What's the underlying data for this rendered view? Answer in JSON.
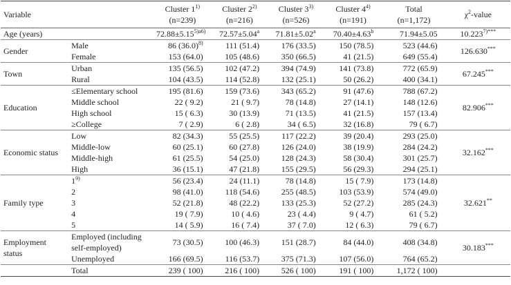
{
  "header": [
    "Variable",
    {
      "text": "Cluster 1",
      "sup": "1)",
      "sub": "(n=239)"
    },
    {
      "text": "Cluster 2",
      "sup": "2)",
      "sub": "(n=216)"
    },
    {
      "text": "Cluster 3",
      "sup": "3)",
      "sub": "(n=526)"
    },
    {
      "text": "Cluster 4",
      "sup": "4)",
      "sub": "(n=191)"
    },
    {
      "text": "Total",
      "sub": "(n=1,172)"
    },
    {
      "text": "χ",
      "sup": "2",
      "after": "-value"
    }
  ],
  "age": {
    "label": "Age (years)",
    "values": [
      {
        "text": "72.88±5.15",
        "sup": "5)a6)"
      },
      {
        "text": "72.57±5.04",
        "sup": "a"
      },
      {
        "text": "71.81±5.02",
        "sup": "a"
      },
      {
        "text": "70.40±4.63",
        "sup": "b"
      },
      "71.94±5.05"
    ],
    "chi": {
      "text": "10.223",
      "sup": "7)***"
    }
  },
  "groups": [
    {
      "label": "Gender",
      "chi": {
        "text": "126.630",
        "sup": "***"
      },
      "items": [
        {
          "label": "Male",
          "values": [
            {
              "text": "86 (36.0)",
              "sup": "8)"
            },
            "111 (51.4)",
            "176 (33.5)",
            "150 (78.5)",
            "523 (44.6)"
          ]
        },
        {
          "label": "Female",
          "values": [
            "153 (64.0)",
            "105 (48.6)",
            "350 (66.5)",
            "41 (21.5)",
            "649 (55.4)"
          ]
        }
      ]
    },
    {
      "label": "Town",
      "chi": {
        "text": "67.245",
        "sup": "***"
      },
      "items": [
        {
          "label": "Urban",
          "values": [
            "135 (56.5)",
            "102 (47.2)",
            "394 (74.9)",
            "141 (73.8)",
            "772 (65.9)"
          ]
        },
        {
          "label": "Rural",
          "values": [
            "104 (43.5)",
            "114 (52.8)",
            "132 (25.1)",
            "50 (26.2)",
            "400 (34.1)"
          ]
        }
      ]
    },
    {
      "label": "Education",
      "chi": {
        "text": "82.906",
        "sup": "***"
      },
      "items": [
        {
          "label": "≤Elementary school",
          "values": [
            "195 (81.6)",
            "159 (73.6)",
            "343 (65.2)",
            "91 (47.6)",
            "788 (67.2)"
          ]
        },
        {
          "label": "Middle school",
          "values": [
            "22 ( 9.2)",
            "21 ( 9.7)",
            "78 (14.8)",
            "27 (14.1)",
            "148 (12.6)"
          ]
        },
        {
          "label": "High school",
          "values": [
            "15 ( 6.3)",
            "30 (13.9)",
            "71 (13.5)",
            "41 (21.5)",
            "157 (13.4)"
          ]
        },
        {
          "label": "≥College",
          "values": [
            "7 ( 2.9)",
            "6 ( 2.8)",
            "34 ( 6.5)",
            "32 (16.8)",
            "79 ( 6.7)"
          ]
        }
      ]
    },
    {
      "label": "Economic status",
      "chi": {
        "text": "32.162",
        "sup": "***"
      },
      "items": [
        {
          "label": "Low",
          "values": [
            "82 (34.3)",
            "55 (25.5)",
            "117 (22.2)",
            "39 (20.4)",
            "293 (25.0)"
          ]
        },
        {
          "label": "Middle-low",
          "values": [
            "60 (25.1)",
            "60 (27.8)",
            "126 (24.0)",
            "38 (19.9)",
            "284 (24.2)"
          ]
        },
        {
          "label": "Middle-high",
          "values": [
            "61 (25.5)",
            "54 (25.0)",
            "128 (24.3)",
            "58 (30.4)",
            "301 (25.7)"
          ]
        },
        {
          "label": "High",
          "values": [
            "36 (15.1)",
            "47 (21.8)",
            "155 (29.5)",
            "56 (29.3)",
            "294 (25.1)"
          ]
        }
      ]
    },
    {
      "label": "Family type",
      "chi": {
        "text": "32.621",
        "sup": "**"
      },
      "items": [
        {
          "label": {
            "text": "1",
            "sup": "9)"
          },
          "values": [
            "56 (23.4)",
            "24 (11.1)",
            "78 (14.8)",
            "15 ( 7.9)",
            "173 (14.8)"
          ]
        },
        {
          "label": "2",
          "values": [
            "98 (41.0)",
            "118 (54.6)",
            "255 (48.5)",
            "103 (53.9)",
            "574 (49.0)"
          ]
        },
        {
          "label": "3",
          "values": [
            "52 (21.8)",
            "48 (22.2)",
            "133 (25.3)",
            "52 (27.2)",
            "285 (24.3)"
          ]
        },
        {
          "label": "4",
          "values": [
            "19 ( 7.9)",
            "10 ( 4.6)",
            "23 ( 4.4)",
            "9 ( 4.7)",
            "61 ( 5.2)"
          ]
        },
        {
          "label": "5",
          "values": [
            "14 ( 5.9)",
            "16 ( 7.4)",
            "37 ( 7.0)",
            "12 ( 6.3)",
            "79 ( 6.7)"
          ]
        }
      ]
    },
    {
      "label": "Employment status",
      "chi": {
        "text": "30.183",
        "sup": "***"
      },
      "items": [
        {
          "label": "Employed (including self-employed)",
          "values": [
            "73 (30.5)",
            "100 (46.3)",
            "151 (28.7)",
            "84 (44.0)",
            "408 (34.8)"
          ]
        },
        {
          "label": "Unemployed",
          "values": [
            "166 (69.5)",
            "116 (53.7)",
            "375 (71.3)",
            "107 (56.0)",
            "764 (65.2)"
          ]
        }
      ]
    }
  ],
  "total": {
    "label": "Total",
    "values": [
      "239 ( 100)",
      "216 ( 100)",
      "526 ( 100)",
      "191 ( 100)",
      "1,172 ( 100)"
    ]
  }
}
